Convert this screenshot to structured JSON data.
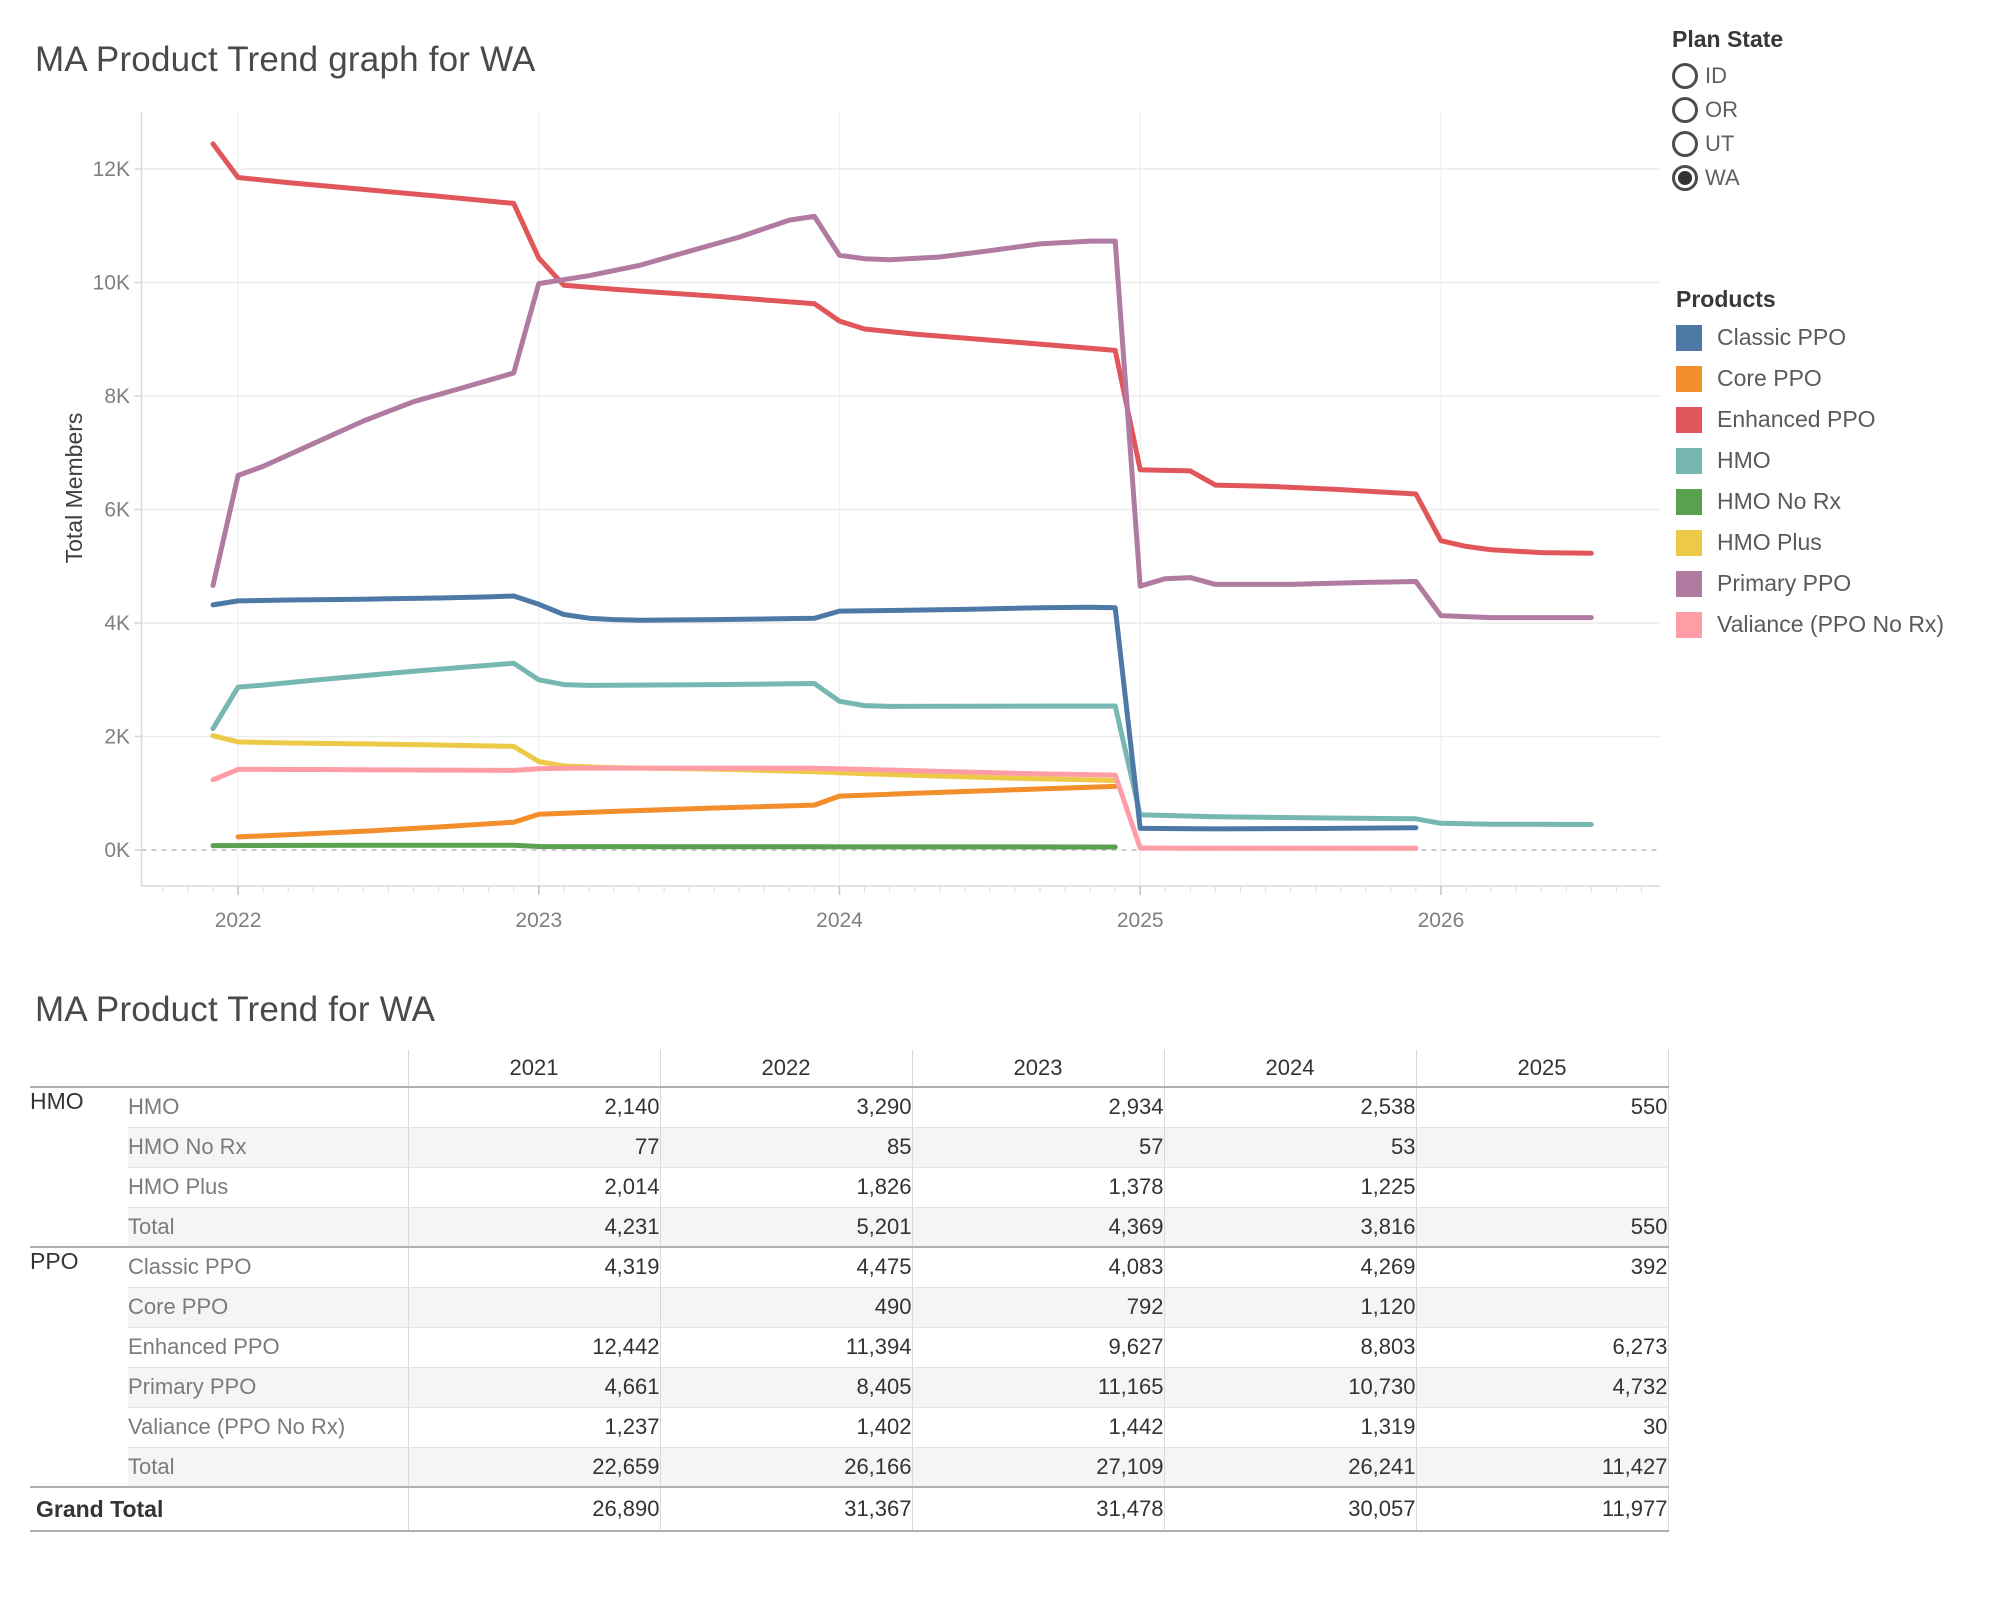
{
  "chart": {
    "title": "MA Product Trend graph for WA",
    "ylabel": "Total Members"
  },
  "filter": {
    "title": "Plan State",
    "options": [
      {
        "label": "ID",
        "selected": false
      },
      {
        "label": "OR",
        "selected": false
      },
      {
        "label": "UT",
        "selected": false
      },
      {
        "label": "WA",
        "selected": true
      }
    ]
  },
  "legend": {
    "title": "Products",
    "items": [
      {
        "label": "Classic PPO",
        "color": "#4e79a7"
      },
      {
        "label": "Core PPO",
        "color": "#f28e2b"
      },
      {
        "label": "Enhanced PPO",
        "color": "#e15759"
      },
      {
        "label": "HMO",
        "color": "#76b7b2"
      },
      {
        "label": "HMO No Rx",
        "color": "#59a14f"
      },
      {
        "label": "HMO Plus",
        "color": "#edc948"
      },
      {
        "label": "Primary PPO",
        "color": "#b07aa1"
      },
      {
        "label": "Valiance (PPO No Rx)",
        "color": "#ff9da7"
      }
    ]
  },
  "chart_data": {
    "type": "line",
    "title": "MA Product Trend graph for WA",
    "xlabel": "",
    "ylabel": "Total Members",
    "x_unit": "months since Dec 2021",
    "ylim": [
      0,
      13000
    ],
    "y_ticks": [
      {
        "value": 0,
        "label": "0K"
      },
      {
        "value": 2000,
        "label": "2K"
      },
      {
        "value": 4000,
        "label": "4K"
      },
      {
        "value": 6000,
        "label": "6K"
      },
      {
        "value": 8000,
        "label": "8K"
      },
      {
        "value": 10000,
        "label": "10K"
      },
      {
        "value": 12000,
        "label": "12K"
      }
    ],
    "x_ticks": [
      {
        "month": 1,
        "label": "2022"
      },
      {
        "month": 13,
        "label": "2023"
      },
      {
        "month": 25,
        "label": "2024"
      },
      {
        "month": 37,
        "label": "2025"
      },
      {
        "month": 49,
        "label": "2026"
      }
    ],
    "grid": true,
    "legend_position": "right",
    "series": [
      {
        "name": "HMO No Rx",
        "color": "#59a14f",
        "pts": [
          [
            0,
            77
          ],
          [
            6,
            82
          ],
          [
            12,
            85
          ],
          [
            13,
            62
          ],
          [
            18,
            59
          ],
          [
            24,
            57
          ],
          [
            30,
            55
          ],
          [
            36,
            53
          ]
        ]
      },
      {
        "name": "HMO Plus",
        "color": "#edc948",
        "pts": [
          [
            0,
            2014
          ],
          [
            1,
            1905
          ],
          [
            3,
            1885
          ],
          [
            6,
            1870
          ],
          [
            9,
            1850
          ],
          [
            12,
            1826
          ],
          [
            13,
            1560
          ],
          [
            14,
            1480
          ],
          [
            16,
            1450
          ],
          [
            20,
            1425
          ],
          [
            24,
            1378
          ],
          [
            26,
            1345
          ],
          [
            30,
            1288
          ],
          [
            33,
            1255
          ],
          [
            36,
            1225
          ]
        ]
      },
      {
        "name": "Core PPO",
        "color": "#f28e2b",
        "pts": [
          [
            1,
            230
          ],
          [
            3,
            270
          ],
          [
            6,
            330
          ],
          [
            9,
            405
          ],
          [
            12,
            490
          ],
          [
            13,
            630
          ],
          [
            16,
            680
          ],
          [
            20,
            740
          ],
          [
            24,
            792
          ],
          [
            25,
            950
          ],
          [
            28,
            1000
          ],
          [
            32,
            1060
          ],
          [
            36,
            1120
          ]
        ]
      },
      {
        "name": "Valiance (PPO No Rx)",
        "color": "#ff9da7",
        "pts": [
          [
            0,
            1237
          ],
          [
            1,
            1420
          ],
          [
            4,
            1418
          ],
          [
            8,
            1410
          ],
          [
            12,
            1402
          ],
          [
            13,
            1430
          ],
          [
            14,
            1440
          ],
          [
            16,
            1443
          ],
          [
            20,
            1443
          ],
          [
            24,
            1442
          ],
          [
            26,
            1420
          ],
          [
            29,
            1385
          ],
          [
            32,
            1352
          ],
          [
            36,
            1319
          ],
          [
            37,
            35
          ],
          [
            39,
            30
          ],
          [
            48,
            30
          ]
        ]
      },
      {
        "name": "HMO",
        "color": "#76b7b2",
        "pts": [
          [
            0,
            2140
          ],
          [
            1,
            2870
          ],
          [
            2,
            2905
          ],
          [
            4,
            2990
          ],
          [
            8,
            3150
          ],
          [
            12,
            3290
          ],
          [
            13,
            3000
          ],
          [
            14,
            2915
          ],
          [
            15,
            2900
          ],
          [
            20,
            2915
          ],
          [
            24,
            2934
          ],
          [
            25,
            2620
          ],
          [
            26,
            2545
          ],
          [
            27,
            2530
          ],
          [
            32,
            2535
          ],
          [
            36,
            2538
          ],
          [
            37,
            620
          ],
          [
            40,
            585
          ],
          [
            44,
            565
          ],
          [
            48,
            550
          ],
          [
            49,
            470
          ],
          [
            51,
            455
          ],
          [
            55,
            450
          ]
        ]
      },
      {
        "name": "Classic PPO",
        "color": "#4e79a7",
        "pts": [
          [
            0,
            4319
          ],
          [
            1,
            4390
          ],
          [
            3,
            4405
          ],
          [
            6,
            4420
          ],
          [
            9,
            4440
          ],
          [
            11,
            4460
          ],
          [
            12,
            4475
          ],
          [
            13,
            4330
          ],
          [
            14,
            4150
          ],
          [
            15,
            4085
          ],
          [
            16,
            4060
          ],
          [
            17,
            4050
          ],
          [
            20,
            4060
          ],
          [
            24,
            4083
          ],
          [
            25,
            4210
          ],
          [
            27,
            4220
          ],
          [
            30,
            4240
          ],
          [
            33,
            4270
          ],
          [
            35,
            4278
          ],
          [
            36,
            4269
          ],
          [
            37,
            380
          ],
          [
            40,
            372
          ],
          [
            44,
            378
          ],
          [
            48,
            392
          ]
        ]
      },
      {
        "name": "Enhanced PPO",
        "color": "#e15759",
        "pts": [
          [
            0,
            12442
          ],
          [
            1,
            11850
          ],
          [
            3,
            11760
          ],
          [
            6,
            11640
          ],
          [
            9,
            11520
          ],
          [
            12,
            11394
          ],
          [
            13,
            10430
          ],
          [
            14,
            9950
          ],
          [
            16,
            9880
          ],
          [
            20,
            9760
          ],
          [
            24,
            9627
          ],
          [
            25,
            9320
          ],
          [
            26,
            9180
          ],
          [
            28,
            9090
          ],
          [
            32,
            8950
          ],
          [
            36,
            8803
          ],
          [
            37,
            6700
          ],
          [
            39,
            6680
          ],
          [
            40,
            6430
          ],
          [
            42,
            6410
          ],
          [
            45,
            6350
          ],
          [
            48,
            6273
          ],
          [
            49,
            5450
          ],
          [
            50,
            5350
          ],
          [
            51,
            5290
          ],
          [
            53,
            5240
          ],
          [
            55,
            5230
          ]
        ]
      },
      {
        "name": "Primary PPO",
        "color": "#b07aa1",
        "pts": [
          [
            0,
            4661
          ],
          [
            1,
            6600
          ],
          [
            2,
            6760
          ],
          [
            4,
            7160
          ],
          [
            6,
            7560
          ],
          [
            8,
            7900
          ],
          [
            10,
            8150
          ],
          [
            12,
            8405
          ],
          [
            13,
            9980
          ],
          [
            15,
            10120
          ],
          [
            17,
            10300
          ],
          [
            19,
            10550
          ],
          [
            21,
            10800
          ],
          [
            23,
            11100
          ],
          [
            24,
            11165
          ],
          [
            25,
            10480
          ],
          [
            26,
            10420
          ],
          [
            27,
            10400
          ],
          [
            29,
            10450
          ],
          [
            31,
            10560
          ],
          [
            33,
            10680
          ],
          [
            35,
            10730
          ],
          [
            36,
            10730
          ],
          [
            37,
            4650
          ],
          [
            38,
            4780
          ],
          [
            39,
            4800
          ],
          [
            40,
            4680
          ],
          [
            43,
            4680
          ],
          [
            46,
            4715
          ],
          [
            48,
            4732
          ],
          [
            49,
            4130
          ],
          [
            51,
            4095
          ],
          [
            55,
            4095
          ]
        ]
      }
    ]
  },
  "table": {
    "title": "MA Product Trend for WA",
    "columns": [
      "2021",
      "2022",
      "2023",
      "2024",
      "2025"
    ],
    "groups": [
      {
        "name": "HMO",
        "rows": [
          {
            "label": "HMO",
            "values": [
              "2,140",
              "3,290",
              "2,934",
              "2,538",
              "550"
            ]
          },
          {
            "label": "HMO No Rx",
            "values": [
              "77",
              "85",
              "57",
              "53",
              ""
            ]
          },
          {
            "label": "HMO Plus",
            "values": [
              "2,014",
              "1,826",
              "1,378",
              "1,225",
              ""
            ]
          },
          {
            "label": "Total",
            "values": [
              "4,231",
              "5,201",
              "4,369",
              "3,816",
              "550"
            ]
          }
        ]
      },
      {
        "name": "PPO",
        "rows": [
          {
            "label": "Classic PPO",
            "values": [
              "4,319",
              "4,475",
              "4,083",
              "4,269",
              "392"
            ]
          },
          {
            "label": "Core PPO",
            "values": [
              "",
              "490",
              "792",
              "1,120",
              ""
            ]
          },
          {
            "label": "Enhanced PPO",
            "values": [
              "12,442",
              "11,394",
              "9,627",
              "8,803",
              "6,273"
            ]
          },
          {
            "label": "Primary PPO",
            "values": [
              "4,661",
              "8,405",
              "11,165",
              "10,730",
              "4,732"
            ]
          },
          {
            "label": "Valiance (PPO No Rx)",
            "values": [
              "1,237",
              "1,402",
              "1,442",
              "1,319",
              "30"
            ]
          },
          {
            "label": "Total",
            "values": [
              "22,659",
              "26,166",
              "27,109",
              "26,241",
              "11,427"
            ]
          }
        ]
      }
    ],
    "grand_total": {
      "label": "Grand Total",
      "values": [
        "26,890",
        "31,367",
        "31,478",
        "30,057",
        "11,977"
      ]
    }
  }
}
